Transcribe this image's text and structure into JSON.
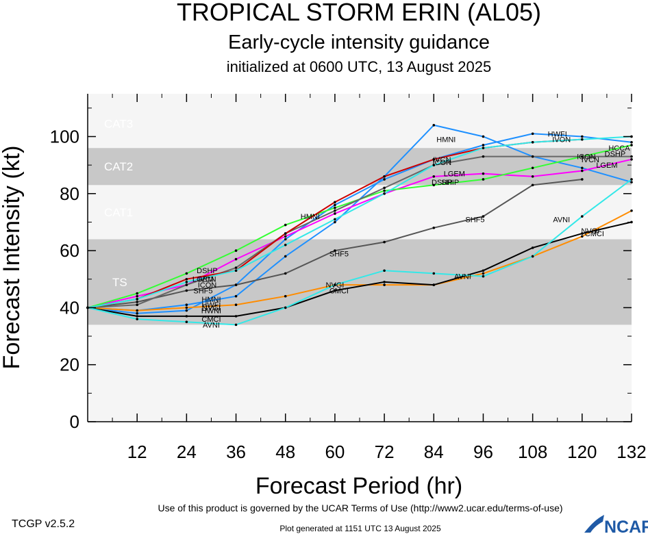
{
  "header": {
    "title": "TROPICAL STORM ERIN (AL05)",
    "subtitle": "Early-cycle intensity guidance",
    "init": "initialized at 0600 UTC, 13 August 2025"
  },
  "footer": {
    "version": "TCGP v2.5.2",
    "terms": "Use of this product is governed by the UCAR Terms of Use (http://www2.ucar.edu/terms-of-use)",
    "generated": "Plot generated at 1151 UTC   13 August 2025",
    "logo": "NCAR"
  },
  "chart_data": {
    "type": "line",
    "xlabel": "Forecast Period (hr)",
    "ylabel": "Forecast Intensity (kt)",
    "xlim": [
      0,
      132
    ],
    "ylim": [
      0,
      115
    ],
    "xticks": [
      12,
      24,
      36,
      48,
      60,
      72,
      84,
      96,
      108,
      120,
      132
    ],
    "yticks": [
      0,
      20,
      40,
      60,
      80,
      100
    ],
    "bands": [
      {
        "label": "TS",
        "from": 34,
        "to": 64,
        "shade": "#c8c8c8"
      },
      {
        "label": "CAT1",
        "from": 64,
        "to": 83,
        "shade": "#f5f5f5"
      },
      {
        "label": "CAT2",
        "from": 83,
        "to": 96,
        "shade": "#c8c8c8"
      },
      {
        "label": "CAT3",
        "from": 96,
        "to": 113,
        "shade": "#f5f5f5"
      }
    ],
    "series": [
      {
        "name": "HMNI",
        "color": "#1e90ff",
        "x": [
          0,
          12,
          24,
          36,
          48,
          60,
          72,
          84,
          96,
          108,
          120,
          132
        ],
        "y": [
          40,
          39,
          41,
          44,
          58,
          70,
          86,
          104,
          100,
          93,
          89,
          84
        ],
        "labels": [
          [
            30,
            43
          ],
          [
            54,
            72
          ],
          [
            87,
            99
          ]
        ]
      },
      {
        "name": "HWFI",
        "color": "#1e90ff",
        "x": [
          0,
          12,
          24,
          36,
          48,
          60,
          72,
          84,
          96,
          108,
          120,
          132
        ],
        "y": [
          40,
          38,
          39,
          48,
          64,
          76,
          85,
          92,
          97,
          101,
          100,
          98
        ],
        "labels": [
          [
            30,
            41
          ],
          [
            114,
            101
          ]
        ]
      },
      {
        "name": "HWNI",
        "color": "#ff8c00",
        "x": [
          0,
          12,
          24,
          36,
          48,
          60,
          72,
          84,
          96,
          108,
          120,
          132
        ],
        "y": [
          40,
          39,
          40,
          41,
          44,
          48,
          48,
          48,
          52,
          58,
          65,
          74
        ],
        "labels": [
          [
            30,
            39
          ]
        ]
      },
      {
        "name": "NVGI",
        "color": "#ff8c00",
        "x": [],
        "y": [],
        "labels": [
          [
            30,
            40
          ],
          [
            60,
            48
          ],
          [
            122,
            67
          ]
        ]
      },
      {
        "name": "CMCI",
        "color": "#000000",
        "x": [
          0,
          12,
          24,
          36,
          48,
          60,
          72,
          84,
          96,
          108,
          120,
          132
        ],
        "y": [
          40,
          37,
          37,
          37,
          40,
          46,
          49,
          48,
          53,
          61,
          66,
          70
        ],
        "labels": [
          [
            30,
            36
          ],
          [
            61,
            46
          ],
          [
            123,
            66
          ]
        ]
      },
      {
        "name": "AVNI",
        "color": "#33e8e8",
        "x": [
          0,
          12,
          24,
          36,
          48,
          60,
          72,
          84,
          96,
          108,
          120,
          132
        ],
        "y": [
          40,
          36,
          35,
          34,
          40,
          48,
          53,
          52,
          51,
          58,
          72,
          85
        ],
        "labels": [
          [
            30,
            34
          ],
          [
            91,
            51
          ],
          [
            115,
            71
          ]
        ]
      },
      {
        "name": "SHF5",
        "color": "#555555",
        "x": [
          0,
          12,
          24,
          36,
          48,
          60,
          72,
          84,
          96,
          108,
          120
        ],
        "y": [
          40,
          42,
          46,
          48,
          52,
          60,
          63,
          68,
          72,
          83,
          85
        ],
        "labels": [
          [
            28,
            46
          ],
          [
            61,
            59
          ],
          [
            94,
            71
          ]
        ]
      },
      {
        "name": "LGEM",
        "color": "#ff00ff",
        "x": [
          0,
          12,
          24,
          36,
          48,
          60,
          72,
          84,
          96,
          108,
          120,
          132
        ],
        "y": [
          40,
          44,
          48,
          57,
          65,
          73,
          80,
          86,
          87,
          86,
          88,
          92
        ],
        "labels": [
          [
            28,
            50
          ],
          [
            89,
            87
          ],
          [
            126,
            90
          ]
        ]
      },
      {
        "name": "DSHP",
        "color": "#33ff33",
        "x": [
          0,
          12,
          24,
          36,
          48,
          60,
          72,
          84,
          96,
          108,
          120,
          132
        ],
        "y": [
          40,
          45,
          52,
          60,
          69,
          75,
          81,
          83,
          85,
          89,
          93,
          97
        ],
        "labels": [
          [
            29,
            53
          ],
          [
            86,
            84
          ],
          [
            128,
            94
          ]
        ]
      },
      {
        "name": "SHIP",
        "color": "#33ff33",
        "x": [],
        "y": [],
        "labels": [
          [
            88,
            84
          ]
        ]
      },
      {
        "name": "ICON",
        "color": "#666666",
        "x": [
          0,
          12,
          24,
          36,
          48,
          60,
          72,
          84,
          96,
          108,
          120,
          132
        ],
        "y": [
          40,
          41,
          48,
          54,
          66,
          74,
          82,
          90,
          93,
          93,
          93,
          93
        ],
        "labels": [
          [
            29,
            48
          ],
          [
            86,
            91
          ],
          [
            121,
            93
          ]
        ]
      },
      {
        "name": "IVCN",
        "color": "#666666",
        "x": [],
        "y": [],
        "labels": [
          [
            29,
            50
          ],
          [
            86,
            92
          ],
          [
            122,
            92
          ]
        ]
      },
      {
        "name": "IVON",
        "color": "#cc0000",
        "x": [
          0,
          12,
          24,
          36,
          48,
          60,
          72,
          84,
          96,
          108,
          120
        ],
        "y": [
          40,
          43,
          50,
          53,
          66,
          77,
          86,
          92,
          96,
          98,
          99
        ],
        "labels": [
          [
            115,
            99
          ]
        ]
      },
      {
        "name": "HCCA",
        "color": "#33e8e8",
        "x": [
          0,
          12,
          24,
          36,
          48,
          60,
          72,
          84,
          96,
          108,
          120,
          132
        ],
        "y": [
          40,
          43,
          49,
          53,
          62,
          71,
          80,
          90,
          96,
          98,
          99,
          100
        ],
        "labels": [
          [
            129,
            96
          ]
        ]
      }
    ]
  }
}
